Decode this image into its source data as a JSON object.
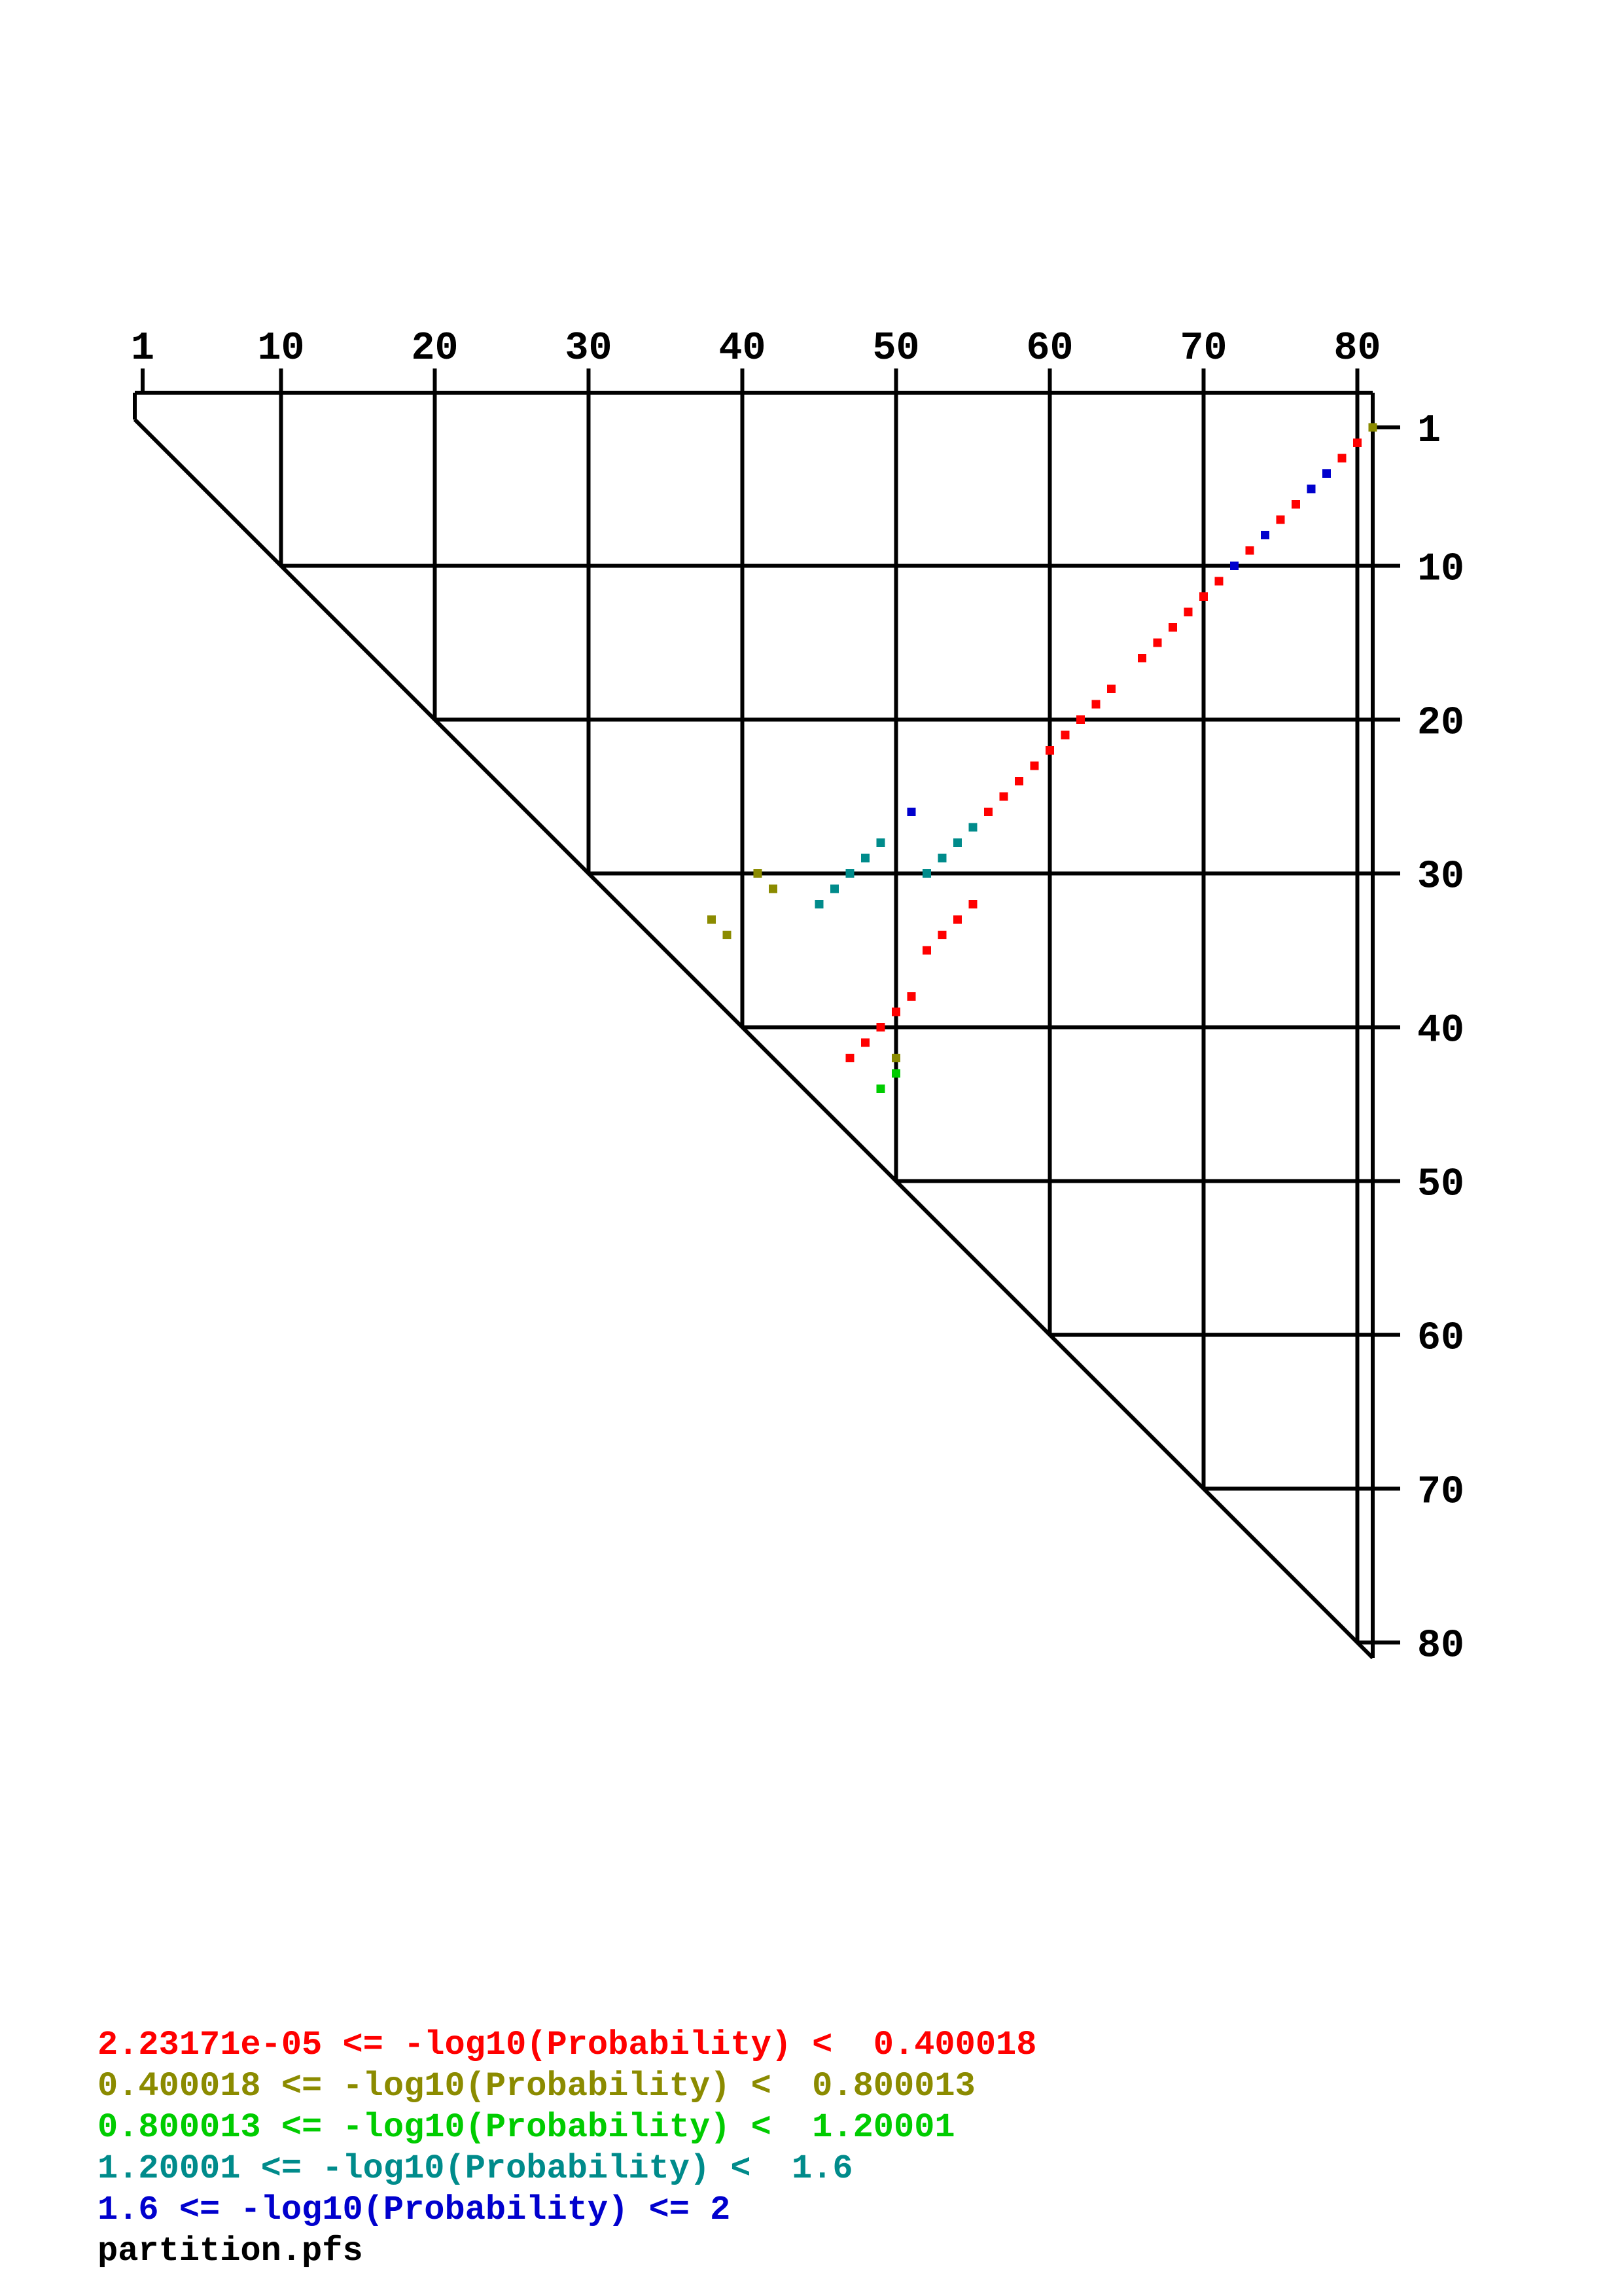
{
  "chart_data": {
    "type": "scatter",
    "plot_kind": "triangular base-pair probability dot plot",
    "title": "",
    "footer": "partition.pfs",
    "x_ticks": [
      1,
      10,
      20,
      30,
      40,
      50,
      60,
      70,
      80
    ],
    "y_ticks": [
      1,
      10,
      20,
      30,
      40,
      50,
      60,
      70,
      80
    ],
    "x_range": [
      1,
      81
    ],
    "y_range": [
      1,
      81
    ],
    "grid": true,
    "legend_position": "bottom-left",
    "colors": {
      "axis": "#000000",
      "background": "#ffffff"
    },
    "classes": [
      {
        "name": "prob-class-1",
        "color": "#ff0000",
        "label": "2.23171e-05 <= -log10(Probability) <  0.400018"
      },
      {
        "name": "prob-class-2",
        "color": "#8b8b00",
        "label": "0.400018 <= -log10(Probability) <  0.800013"
      },
      {
        "name": "prob-class-3",
        "color": "#00cc00",
        "label": "0.800013 <= -log10(Probability) <  1.20001"
      },
      {
        "name": "prob-class-4",
        "color": "#008b8b",
        "label": "1.20001 <= -log10(Probability) <  1.6"
      },
      {
        "name": "prob-class-5",
        "color": "#0000cd",
        "label": "1.6 <= -log10(Probability) <= 2"
      }
    ],
    "points_format": "[row_i, col_j, class_index]",
    "points": [
      [
        1,
        81,
        1
      ],
      [
        2,
        80,
        0
      ],
      [
        3,
        79,
        0
      ],
      [
        4,
        78,
        4
      ],
      [
        5,
        77,
        4
      ],
      [
        6,
        76,
        0
      ],
      [
        7,
        75,
        0
      ],
      [
        8,
        74,
        4
      ],
      [
        9,
        73,
        0
      ],
      [
        10,
        72,
        4
      ],
      [
        11,
        71,
        0
      ],
      [
        12,
        70,
        0
      ],
      [
        13,
        69,
        0
      ],
      [
        14,
        68,
        0
      ],
      [
        15,
        67,
        0
      ],
      [
        16,
        66,
        0
      ],
      [
        18,
        64,
        0
      ],
      [
        19,
        63,
        0
      ],
      [
        20,
        62,
        0
      ],
      [
        21,
        61,
        0
      ],
      [
        22,
        60,
        0
      ],
      [
        23,
        59,
        0
      ],
      [
        24,
        58,
        0
      ],
      [
        25,
        57,
        0
      ],
      [
        26,
        56,
        0
      ],
      [
        26,
        51,
        4
      ],
      [
        27,
        55,
        3
      ],
      [
        28,
        54,
        3
      ],
      [
        29,
        53,
        3
      ],
      [
        30,
        52,
        3
      ],
      [
        28,
        49,
        3
      ],
      [
        29,
        48,
        3
      ],
      [
        30,
        47,
        3
      ],
      [
        31,
        46,
        3
      ],
      [
        32,
        45,
        3
      ],
      [
        30,
        41,
        1
      ],
      [
        31,
        42,
        1
      ],
      [
        33,
        38,
        1
      ],
      [
        34,
        39,
        1
      ],
      [
        32,
        55,
        0
      ],
      [
        33,
        54,
        0
      ],
      [
        34,
        53,
        0
      ],
      [
        35,
        52,
        0
      ],
      [
        38,
        51,
        0
      ],
      [
        39,
        50,
        0
      ],
      [
        40,
        49,
        0
      ],
      [
        41,
        48,
        0
      ],
      [
        42,
        47,
        0
      ],
      [
        42,
        50,
        1
      ],
      [
        43,
        50,
        2
      ],
      [
        44,
        49,
        2
      ]
    ]
  }
}
